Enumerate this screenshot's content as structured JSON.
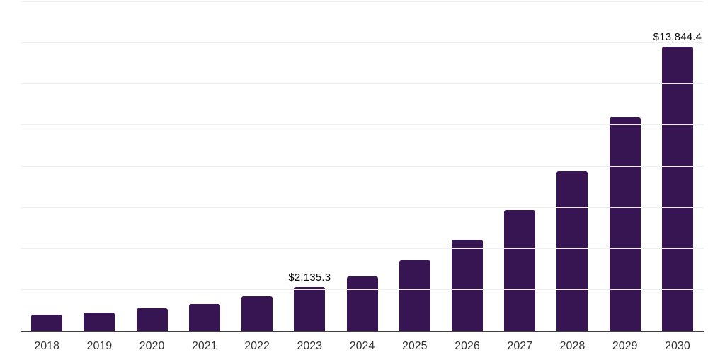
{
  "chart_data": {
    "type": "bar",
    "title": "",
    "xlabel": "",
    "ylabel": "",
    "categories": [
      "2018",
      "2019",
      "2020",
      "2021",
      "2022",
      "2023",
      "2024",
      "2025",
      "2026",
      "2027",
      "2028",
      "2029",
      "2030"
    ],
    "values": [
      800,
      895,
      1090,
      1320,
      1670,
      2135.3,
      2660,
      3440,
      4450,
      5890,
      7770,
      10400,
      13844.4
    ],
    "data_labels": [
      "",
      "",
      "",
      "",
      "",
      "$2,135.3",
      "",
      "",
      "",
      "",
      "",
      "",
      "$13,844.4"
    ],
    "ylim": [
      0,
      16000
    ],
    "gridline_step": 2000,
    "grid": true,
    "legend_position": "none",
    "colors": {
      "bar": "#371452",
      "grid": "#f0f0f0",
      "axis": "#404040",
      "data_label_text": "#0d0d0d",
      "x_label_text": "#333333",
      "background": "#ffffff"
    }
  }
}
